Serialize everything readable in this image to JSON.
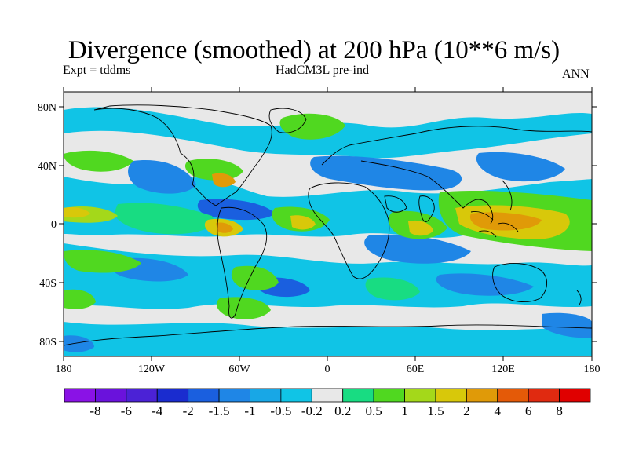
{
  "figure": {
    "title": "Divergence (smoothed) at 200 hPa (10**6 m/s)",
    "left_label": "Expt = tddms",
    "center_label": "HadCM3L pre-ind",
    "right_label": "ANN"
  },
  "axes": {
    "lat_ticks": [
      "80N",
      "40N",
      "0",
      "40S",
      "80S"
    ],
    "lat_values": [
      80,
      40,
      0,
      -40,
      -80
    ],
    "lon_ticks": [
      "180",
      "120W",
      "60W",
      "0",
      "60E",
      "120E",
      "180"
    ],
    "lon_values": [
      -180,
      -120,
      -60,
      0,
      60,
      120,
      180
    ]
  },
  "colorbar": {
    "levels": [
      "-8",
      "-6",
      "-4",
      "-2",
      "-1.5",
      "-1",
      "-0.5",
      "-0.2",
      "0.2",
      "0.5",
      "1",
      "1.5",
      "2",
      "4",
      "6",
      "8"
    ],
    "colors": [
      "#8a12e6",
      "#6a12dc",
      "#4b22d6",
      "#1a2ccf",
      "#1a5fdf",
      "#1f86e6",
      "#18a7e6",
      "#10c4e6",
      "#e8e8e8",
      "#18dc82",
      "#50d820",
      "#a4d81a",
      "#d8c80a",
      "#e09a08",
      "#e45a08",
      "#e02a10",
      "#e00000"
    ]
  }
}
